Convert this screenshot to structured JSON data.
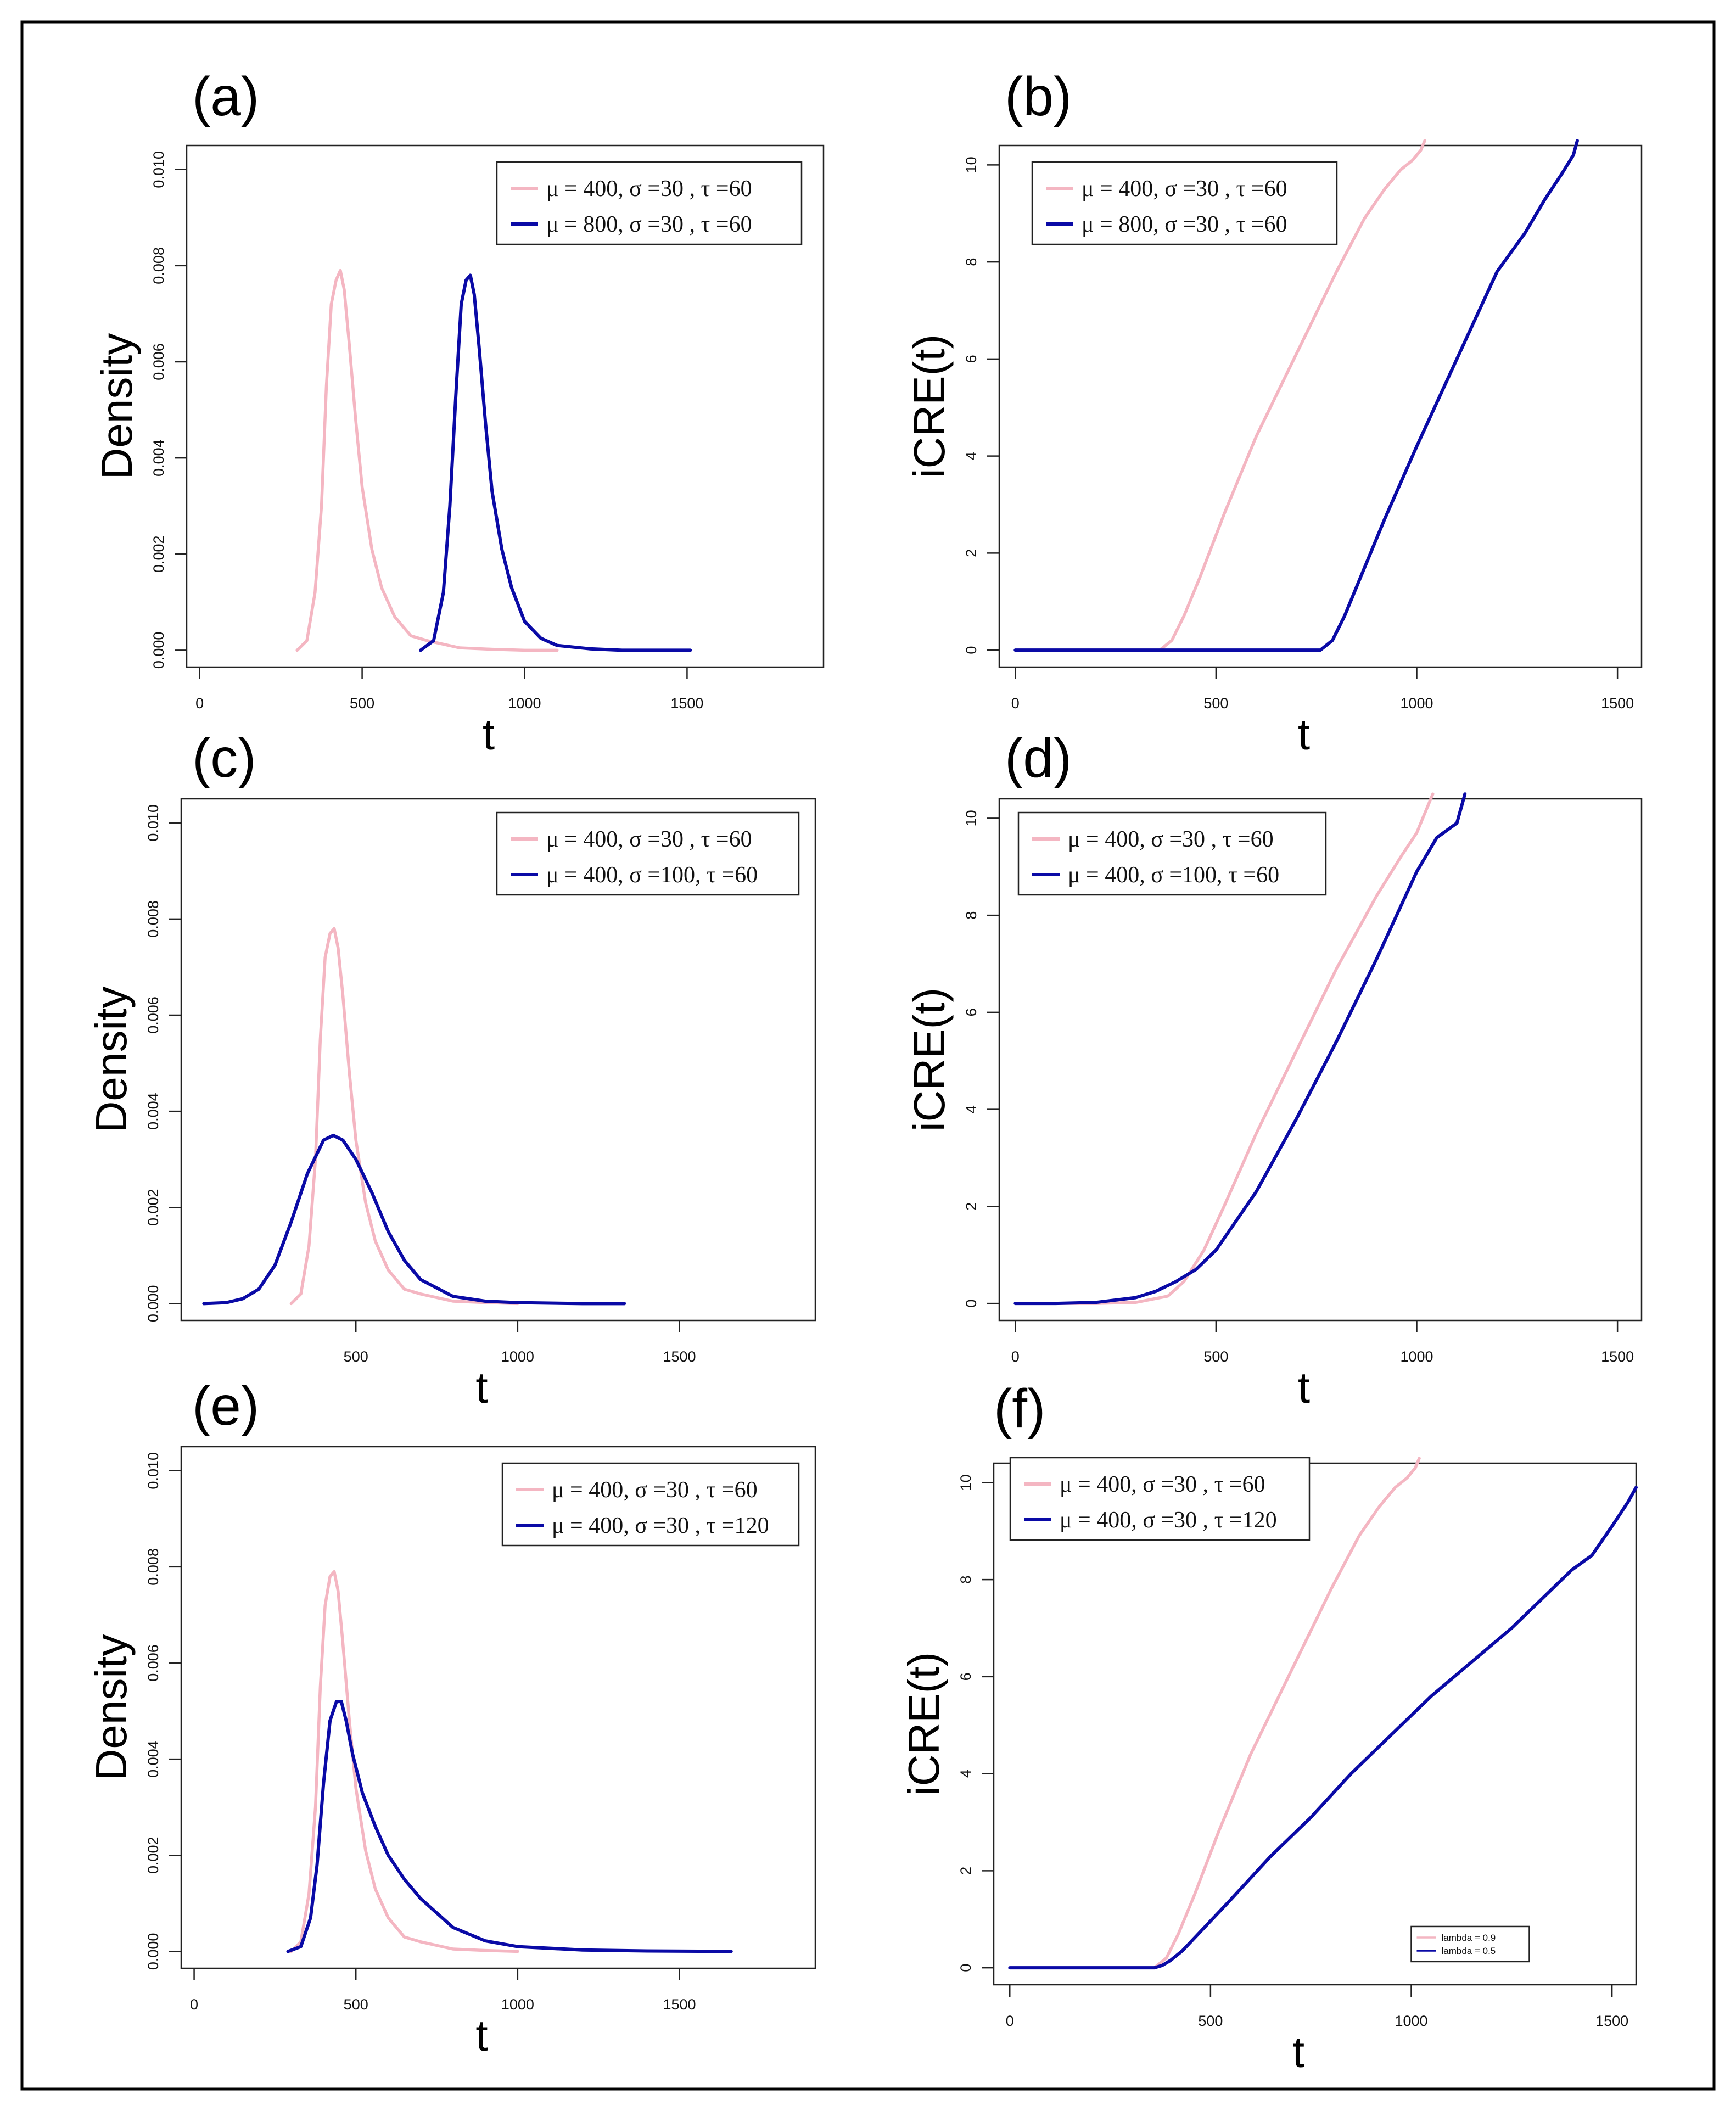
{
  "figure": {
    "colors": {
      "pink": "#f4b6c2",
      "blue": "#0a0aa6"
    }
  },
  "chart_data": [
    {
      "id": "a",
      "type": "line",
      "panel_label": "(a)",
      "xlabel": "t",
      "ylabel": "Density",
      "xlim": [
        -40,
        1920
      ],
      "ylim": [
        -0.00035,
        0.0105
      ],
      "xticks": [
        0,
        500,
        1000,
        1500
      ],
      "yticks": [
        0.0,
        0.002,
        0.004,
        0.006,
        0.008,
        0.01
      ],
      "yticklabels": [
        "0.000",
        "0.002",
        "0.004",
        "0.006",
        "0.008",
        "0.010"
      ],
      "legend": {
        "position": "top-right",
        "entries": [
          "μ = 400, σ =30 , τ =60",
          "μ = 800, σ =30 , τ =60"
        ]
      },
      "series": [
        {
          "color": "pink",
          "x": [
            300,
            330,
            355,
            375,
            390,
            405,
            420,
            433,
            445,
            460,
            480,
            500,
            530,
            560,
            600,
            650,
            700,
            800,
            900,
            1000,
            1100
          ],
          "y": [
            0.0,
            0.0002,
            0.0012,
            0.003,
            0.0055,
            0.0072,
            0.0077,
            0.0079,
            0.0075,
            0.0064,
            0.0048,
            0.0034,
            0.0021,
            0.0013,
            0.0007,
            0.0003,
            0.0002,
            5e-05,
            2e-05,
            0.0,
            0.0
          ]
        },
        {
          "color": "blue",
          "x": [
            680,
            720,
            750,
            770,
            790,
            805,
            820,
            833,
            845,
            860,
            880,
            900,
            930,
            960,
            1000,
            1050,
            1100,
            1200,
            1300,
            1400,
            1510
          ],
          "y": [
            0.0,
            0.0002,
            0.0012,
            0.003,
            0.0055,
            0.0072,
            0.0077,
            0.0078,
            0.0074,
            0.0063,
            0.0047,
            0.0033,
            0.0021,
            0.0013,
            0.0006,
            0.00025,
            0.0001,
            3e-05,
            0.0,
            0.0,
            0.0
          ]
        }
      ]
    },
    {
      "id": "b",
      "type": "line",
      "panel_label": "(b)",
      "xlabel": "t",
      "ylabel": "iCRE(t)",
      "xlim": [
        -40,
        1560
      ],
      "ylim": [
        -0.35,
        10.4
      ],
      "xticks": [
        0,
        500,
        1000,
        1500
      ],
      "yticks": [
        0,
        2,
        4,
        6,
        8,
        10
      ],
      "yticklabels": [
        "0",
        "2",
        "4",
        "6",
        "8",
        "10"
      ],
      "legend": {
        "position": "top-left",
        "entries": [
          "μ = 400, σ =30 , τ =60",
          "μ = 800, σ =30 , τ =60"
        ]
      },
      "series": [
        {
          "color": "pink",
          "x": [
            0,
            360,
            390,
            420,
            460,
            520,
            600,
            700,
            800,
            870,
            920,
            960,
            990,
            1010,
            1020
          ],
          "y": [
            0,
            0,
            0.2,
            0.7,
            1.5,
            2.8,
            4.4,
            6.1,
            7.8,
            8.9,
            9.5,
            9.9,
            10.1,
            10.3,
            10.5
          ]
        },
        {
          "color": "blue",
          "x": [
            0,
            760,
            790,
            820,
            860,
            920,
            1000,
            1100,
            1200,
            1270,
            1320,
            1360,
            1390,
            1400
          ],
          "y": [
            0,
            0,
            0.2,
            0.7,
            1.5,
            2.7,
            4.2,
            6.0,
            7.8,
            8.6,
            9.3,
            9.8,
            10.2,
            10.5
          ]
        }
      ]
    },
    {
      "id": "c",
      "type": "line",
      "panel_label": "(c)",
      "xlabel": "t",
      "ylabel": "Density",
      "xlim": [
        -40,
        1920
      ],
      "ylim": [
        -0.00035,
        0.0105
      ],
      "xticks": [
        500,
        1000,
        1500
      ],
      "yticks": [
        0.0,
        0.002,
        0.004,
        0.006,
        0.008,
        0.01
      ],
      "yticklabels": [
        "0.000",
        "0.002",
        "0.004",
        "0.006",
        "0.008",
        "0.010"
      ],
      "legend": {
        "position": "top-right",
        "entries": [
          "μ = 400, σ =30 , τ =60",
          "μ = 400, σ =100, τ =60"
        ]
      },
      "series": [
        {
          "color": "pink",
          "x": [
            300,
            330,
            355,
            375,
            390,
            405,
            420,
            433,
            445,
            460,
            480,
            500,
            530,
            560,
            600,
            650,
            700,
            800,
            900,
            1000
          ],
          "y": [
            0.0,
            0.0002,
            0.0012,
            0.003,
            0.0055,
            0.0072,
            0.0077,
            0.0078,
            0.0074,
            0.0064,
            0.0048,
            0.0034,
            0.0021,
            0.0013,
            0.0007,
            0.0003,
            0.0002,
            5e-05,
            2e-05,
            0.0
          ]
        },
        {
          "color": "blue",
          "x": [
            30,
            100,
            150,
            200,
            250,
            300,
            350,
            400,
            430,
            460,
            500,
            550,
            600,
            650,
            700,
            800,
            900,
            1000,
            1200,
            1330
          ],
          "y": [
            0.0,
            2e-05,
            0.0001,
            0.0003,
            0.0008,
            0.0017,
            0.0027,
            0.0034,
            0.0035,
            0.0034,
            0.003,
            0.0023,
            0.0015,
            0.0009,
            0.0005,
            0.00015,
            5e-05,
            2e-05,
            0.0,
            0.0
          ]
        }
      ]
    },
    {
      "id": "d",
      "type": "line",
      "panel_label": "(d)",
      "xlabel": "t",
      "ylabel": "iCRE(t)",
      "xlim": [
        -40,
        1560
      ],
      "ylim": [
        -0.35,
        10.4
      ],
      "xticks": [
        0,
        500,
        1000,
        1500
      ],
      "yticks": [
        0,
        2,
        4,
        6,
        8,
        10
      ],
      "yticklabels": [
        "0",
        "2",
        "4",
        "6",
        "8",
        "10"
      ],
      "legend": {
        "position": "top-left",
        "entries": [
          "μ = 400, σ =30 , τ =60",
          "μ = 400, σ =100, τ =60"
        ]
      },
      "series": [
        {
          "color": "pink",
          "x": [
            0,
            200,
            300,
            380,
            420,
            470,
            520,
            600,
            700,
            800,
            900,
            960,
            1000,
            1020,
            1040
          ],
          "y": [
            0,
            0,
            0.02,
            0.15,
            0.45,
            1.1,
            2.0,
            3.5,
            5.2,
            6.9,
            8.4,
            9.2,
            9.7,
            10.1,
            10.5
          ]
        },
        {
          "color": "blue",
          "x": [
            0,
            100,
            200,
            300,
            350,
            400,
            450,
            500,
            600,
            700,
            800,
            900,
            950,
            1000,
            1050,
            1100,
            1120
          ],
          "y": [
            0,
            0,
            0.02,
            0.12,
            0.25,
            0.45,
            0.7,
            1.1,
            2.3,
            3.8,
            5.4,
            7.1,
            8.0,
            8.9,
            9.6,
            9.9,
            10.5
          ]
        }
      ]
    },
    {
      "id": "e",
      "type": "line",
      "panel_label": "(e)",
      "xlabel": "t",
      "ylabel": "Density",
      "xlim": [
        -40,
        1920
      ],
      "ylim": [
        -0.00035,
        0.0105
      ],
      "xticks": [
        0,
        500,
        1000,
        1500
      ],
      "yticks": [
        0.0,
        0.002,
        0.004,
        0.006,
        0.008,
        0.01
      ],
      "yticklabels": [
        "0.000",
        "0.002",
        "0.004",
        "0.006",
        "0.008",
        "0.010"
      ],
      "legend": {
        "position": "top-right",
        "entries": [
          "μ = 400, σ =30 , τ =60",
          "μ = 400, σ =30 , τ =120"
        ]
      },
      "series": [
        {
          "color": "pink",
          "x": [
            300,
            330,
            355,
            375,
            390,
            405,
            420,
            433,
            445,
            460,
            480,
            500,
            530,
            560,
            600,
            650,
            700,
            800,
            900,
            1000
          ],
          "y": [
            0.0,
            0.0002,
            0.0012,
            0.003,
            0.0055,
            0.0072,
            0.0078,
            0.0079,
            0.0075,
            0.0064,
            0.0048,
            0.0034,
            0.0021,
            0.0013,
            0.0007,
            0.0003,
            0.0002,
            5e-05,
            2e-05,
            0.0
          ]
        },
        {
          "color": "blue",
          "x": [
            290,
            330,
            360,
            380,
            400,
            420,
            440,
            455,
            470,
            490,
            520,
            560,
            600,
            650,
            700,
            800,
            900,
            1000,
            1200,
            1400,
            1660
          ],
          "y": [
            0.0,
            0.0001,
            0.0007,
            0.0018,
            0.0035,
            0.0048,
            0.0052,
            0.0052,
            0.0048,
            0.0041,
            0.0033,
            0.0026,
            0.002,
            0.0015,
            0.0011,
            0.0005,
            0.00022,
            0.0001,
            3e-05,
            1e-05,
            0.0
          ]
        }
      ]
    },
    {
      "id": "f",
      "type": "line",
      "panel_label": "(f)",
      "xlabel": "t",
      "ylabel": "iCRE(t)",
      "xlim": [
        -40,
        1560
      ],
      "ylim": [
        -0.35,
        10.4
      ],
      "xticks": [
        0,
        500,
        1000,
        1500
      ],
      "yticks": [
        0,
        2,
        4,
        6,
        8,
        10
      ],
      "yticklabels": [
        "0",
        "2",
        "4",
        "6",
        "8",
        "10"
      ],
      "legend": {
        "position": "top-left",
        "entries": [
          "μ = 400, σ =30 , τ =60",
          "μ = 400, σ =30 , τ =120"
        ]
      },
      "legend2": {
        "position": "bottom-right",
        "entries": [
          "lambda = 0.9",
          "lambda = 0.5"
        ]
      },
      "series": [
        {
          "color": "pink",
          "x": [
            0,
            360,
            390,
            420,
            460,
            520,
            600,
            700,
            800,
            870,
            920,
            960,
            990,
            1010,
            1020
          ],
          "y": [
            0,
            0,
            0.2,
            0.7,
            1.5,
            2.8,
            4.4,
            6.1,
            7.8,
            8.9,
            9.5,
            9.9,
            10.1,
            10.3,
            10.5
          ]
        },
        {
          "color": "blue",
          "x": [
            0,
            360,
            380,
            400,
            430,
            470,
            550,
            650,
            750,
            850,
            950,
            1050,
            1150,
            1250,
            1350,
            1400,
            1450,
            1500,
            1540,
            1560
          ],
          "y": [
            0,
            0,
            0.05,
            0.15,
            0.35,
            0.7,
            1.4,
            2.3,
            3.1,
            4.0,
            4.8,
            5.6,
            6.3,
            7.0,
            7.8,
            8.2,
            8.5,
            9.1,
            9.6,
            9.9
          ]
        }
      ]
    }
  ]
}
